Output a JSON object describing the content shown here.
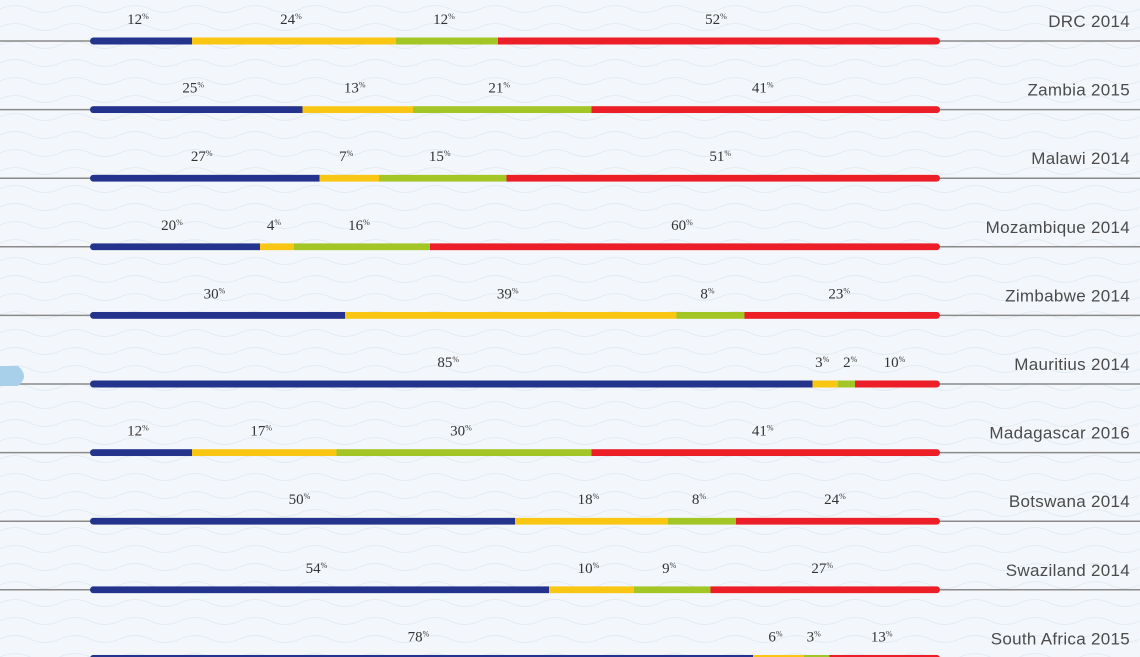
{
  "chart_data": {
    "type": "bar",
    "orientation": "horizontal",
    "stacked": true,
    "percent_suffix": "%",
    "colors": [
      "#24348c",
      "#f9c613",
      "#a4c526",
      "#ec1e27"
    ],
    "categories": [
      "DRC 2014",
      "Zambia 2015",
      "Malawi 2014",
      "Mozambique 2014",
      "Zimbabwe 2014",
      "Mauritius 2014",
      "Madagascar 2016",
      "Botswana 2014",
      "Swaziland 2014",
      "South Africa 2015"
    ],
    "series": [
      {
        "values": [
          12,
          25,
          27,
          20,
          30,
          85,
          12,
          50,
          54,
          78
        ]
      },
      {
        "values": [
          24,
          13,
          7,
          4,
          39,
          3,
          17,
          18,
          10,
          6
        ]
      },
      {
        "values": [
          12,
          21,
          15,
          16,
          8,
          2,
          30,
          8,
          9,
          3
        ]
      },
      {
        "values": [
          52,
          41,
          51,
          60,
          23,
          10,
          41,
          24,
          27,
          13
        ]
      }
    ],
    "xlim": [
      0,
      100
    ],
    "legend": "none",
    "grid": false
  }
}
